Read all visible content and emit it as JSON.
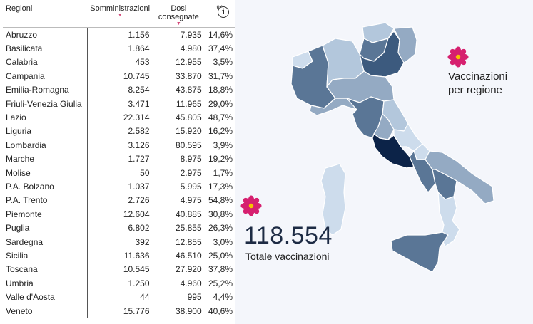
{
  "table": {
    "headers": {
      "region": "Regioni",
      "administrations": "Somministrazioni",
      "doses": "Dosi consegnate",
      "percent": "%"
    },
    "rows": [
      {
        "region": "Abruzzo",
        "administrations": "1.156",
        "doses": "7.935",
        "percent": "14,6%"
      },
      {
        "region": "Basilicata",
        "administrations": "1.864",
        "doses": "4.980",
        "percent": "37,4%"
      },
      {
        "region": "Calabria",
        "administrations": "453",
        "doses": "12.955",
        "percent": "3,5%"
      },
      {
        "region": "Campania",
        "administrations": "10.745",
        "doses": "33.870",
        "percent": "31,7%"
      },
      {
        "region": "Emilia-Romagna",
        "administrations": "8.254",
        "doses": "43.875",
        "percent": "18,8%"
      },
      {
        "region": "Friuli-Venezia Giulia",
        "administrations": "3.471",
        "doses": "11.965",
        "percent": "29,0%"
      },
      {
        "region": "Lazio",
        "administrations": "22.314",
        "doses": "45.805",
        "percent": "48,7%"
      },
      {
        "region": "Liguria",
        "administrations": "2.582",
        "doses": "15.920",
        "percent": "16,2%"
      },
      {
        "region": "Lombardia",
        "administrations": "3.126",
        "doses": "80.595",
        "percent": "3,9%"
      },
      {
        "region": "Marche",
        "administrations": "1.727",
        "doses": "8.975",
        "percent": "19,2%"
      },
      {
        "region": "Molise",
        "administrations": "50",
        "doses": "2.975",
        "percent": "1,7%"
      },
      {
        "region": "P.A. Bolzano",
        "administrations": "1.037",
        "doses": "5.995",
        "percent": "17,3%"
      },
      {
        "region": "P.A. Trento",
        "administrations": "2.726",
        "doses": "4.975",
        "percent": "54,8%"
      },
      {
        "region": "Piemonte",
        "administrations": "12.604",
        "doses": "40.885",
        "percent": "30,8%"
      },
      {
        "region": "Puglia",
        "administrations": "6.802",
        "doses": "25.855",
        "percent": "26,3%"
      },
      {
        "region": "Sardegna",
        "administrations": "392",
        "doses": "12.855",
        "percent": "3,0%"
      },
      {
        "region": "Sicilia",
        "administrations": "11.636",
        "doses": "46.510",
        "percent": "25,0%"
      },
      {
        "region": "Toscana",
        "administrations": "10.545",
        "doses": "27.920",
        "percent": "37,8%"
      },
      {
        "region": "Umbria",
        "administrations": "1.250",
        "doses": "4.960",
        "percent": "25,2%"
      },
      {
        "region": "Valle d'Aosta",
        "administrations": "44",
        "doses": "995",
        "percent": "4,4%"
      },
      {
        "region": "Veneto",
        "administrations": "15.776",
        "doses": "38.900",
        "percent": "40,6%"
      }
    ]
  },
  "info_button": {
    "label": "i"
  },
  "map": {
    "title_line1": "Vaccinazioni",
    "title_line2": "per regione",
    "icon": "flower-icon",
    "colors": {
      "darkest": "#0c2348",
      "dark": "#3c5a7e",
      "mid": "#5a7696",
      "light": "#94aac3",
      "lighter": "#b3c7dc",
      "lightest": "#cddcec"
    }
  },
  "total": {
    "value": "118.554",
    "label": "Totale vaccinazioni"
  },
  "accent": {
    "flower_petal": "#d6206f",
    "flower_center": "#f5c400",
    "sort_arrow": "#d44a7a"
  }
}
